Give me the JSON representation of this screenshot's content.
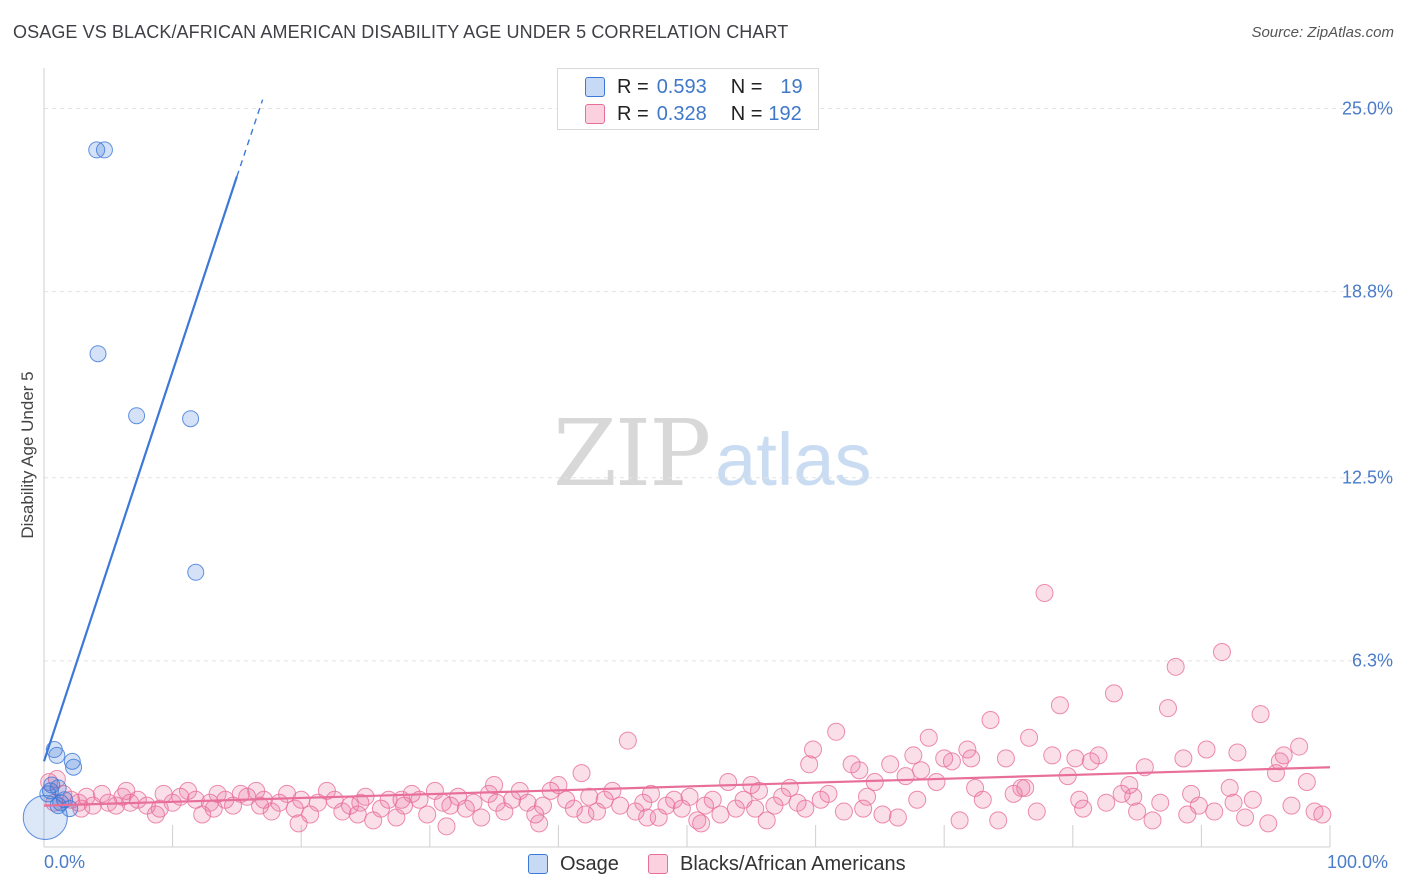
{
  "title": "OSAGE VS BLACK/AFRICAN AMERICAN DISABILITY AGE UNDER 5 CORRELATION CHART",
  "source": "Source: ZipAtlas.com",
  "watermark": {
    "zip": "ZIP",
    "atlas": "atlas"
  },
  "colors": {
    "osage": "#3c78d8",
    "black": "#e86f9a",
    "tick": "#4a7cc9"
  },
  "legend": {
    "osage": {
      "r_label": "R =",
      "r_value": "0.593",
      "n_label": "N =",
      "n_value": "19"
    },
    "black": {
      "r_label": "R =",
      "r_value": "0.328",
      "n_label": "N =",
      "n_value": "192"
    }
  },
  "bottom_legend": {
    "osage": "Osage",
    "black": "Blacks/African Americans"
  },
  "chart_data": {
    "type": "scatter",
    "title": "OSAGE VS BLACK/AFRICAN AMERICAN DISABILITY AGE UNDER 5 CORRELATION CHART",
    "xlabel": "",
    "ylabel": "Disability Age Under 5",
    "xlim": [
      0,
      100
    ],
    "ylim": [
      0,
      26.0
    ],
    "x_tick_labels": [
      "0.0%",
      "100.0%"
    ],
    "y_ticks": [
      {
        "value": 6.3,
        "label": "6.3%"
      },
      {
        "value": 12.5,
        "label": "12.5%"
      },
      {
        "value": 18.8,
        "label": "18.8%"
      },
      {
        "value": 25.0,
        "label": "25.0%"
      }
    ],
    "series": [
      {
        "name": "Osage",
        "r": 0.593,
        "n": 19,
        "trend": {
          "x0": 0.0,
          "y0": 2.9,
          "x1": 15.0,
          "y1": 22.7,
          "dash_x1": 17.0,
          "dash_y1": 25.3
        },
        "points": [
          [
            4.1,
            23.6
          ],
          [
            4.7,
            23.6
          ],
          [
            4.2,
            16.7
          ],
          [
            7.2,
            14.6
          ],
          [
            11.4,
            14.5
          ],
          [
            11.8,
            9.3
          ],
          [
            0.8,
            3.3
          ],
          [
            1.0,
            3.1
          ],
          [
            2.2,
            2.9
          ],
          [
            2.3,
            2.7
          ],
          [
            0.6,
            2.1
          ],
          [
            1.1,
            2.0
          ],
          [
            0.5,
            1.9
          ],
          [
            1.6,
            1.6
          ],
          [
            1.3,
            1.5
          ],
          [
            1.1,
            1.4
          ],
          [
            2.0,
            1.3
          ],
          [
            0.3,
            1.8
          ],
          [
            0.1,
            1.0
          ]
        ]
      },
      {
        "name": "Blacks/African Americans",
        "r": 0.328,
        "n": 192,
        "trend": {
          "x0": 0.0,
          "y0": 1.4,
          "x1": 100.0,
          "y1": 2.7
        },
        "points": [
          [
            0.4,
            2.2
          ],
          [
            1.0,
            2.3
          ],
          [
            1.5,
            1.8
          ],
          [
            2.1,
            1.6
          ],
          [
            2.7,
            1.5
          ],
          [
            3.3,
            1.7
          ],
          [
            3.8,
            1.4
          ],
          [
            4.5,
            1.8
          ],
          [
            5.0,
            1.5
          ],
          [
            5.6,
            1.4
          ],
          [
            6.1,
            1.7
          ],
          [
            6.7,
            1.5
          ],
          [
            7.3,
            1.6
          ],
          [
            8.0,
            1.4
          ],
          [
            8.7,
            1.1
          ],
          [
            9.3,
            1.8
          ],
          [
            10.0,
            1.5
          ],
          [
            10.6,
            1.7
          ],
          [
            11.2,
            1.9
          ],
          [
            11.8,
            1.6
          ],
          [
            12.3,
            1.1
          ],
          [
            12.9,
            1.5
          ],
          [
            13.5,
            1.8
          ],
          [
            14.1,
            1.6
          ],
          [
            14.7,
            1.4
          ],
          [
            15.3,
            1.8
          ],
          [
            15.8,
            1.7
          ],
          [
            16.5,
            1.9
          ],
          [
            17.1,
            1.6
          ],
          [
            17.7,
            1.2
          ],
          [
            18.3,
            1.5
          ],
          [
            18.9,
            1.8
          ],
          [
            19.5,
            1.3
          ],
          [
            20.0,
            1.6
          ],
          [
            20.7,
            1.1
          ],
          [
            21.3,
            1.5
          ],
          [
            22.0,
            1.9
          ],
          [
            22.6,
            1.6
          ],
          [
            23.2,
            1.2
          ],
          [
            23.8,
            1.4
          ],
          [
            24.4,
            1.1
          ],
          [
            25.0,
            1.7
          ],
          [
            25.6,
            0.9
          ],
          [
            26.2,
            1.3
          ],
          [
            26.8,
            1.6
          ],
          [
            27.4,
            1.0
          ],
          [
            28.0,
            1.4
          ],
          [
            28.6,
            1.8
          ],
          [
            29.2,
            1.6
          ],
          [
            29.8,
            1.1
          ],
          [
            30.4,
            1.9
          ],
          [
            31.0,
            1.5
          ],
          [
            31.6,
            1.4
          ],
          [
            32.2,
            1.7
          ],
          [
            32.8,
            1.3
          ],
          [
            33.4,
            1.5
          ],
          [
            34.0,
            1.0
          ],
          [
            34.6,
            1.8
          ],
          [
            35.2,
            1.5
          ],
          [
            35.8,
            1.2
          ],
          [
            36.4,
            1.6
          ],
          [
            37.0,
            1.9
          ],
          [
            37.6,
            1.5
          ],
          [
            38.2,
            1.1
          ],
          [
            38.8,
            1.4
          ],
          [
            39.4,
            1.9
          ],
          [
            40.0,
            2.1
          ],
          [
            40.6,
            1.6
          ],
          [
            41.2,
            1.3
          ],
          [
            41.8,
            2.5
          ],
          [
            42.4,
            1.7
          ],
          [
            43.0,
            1.2
          ],
          [
            43.6,
            1.6
          ],
          [
            44.2,
            1.9
          ],
          [
            44.8,
            1.4
          ],
          [
            45.4,
            3.6
          ],
          [
            46.0,
            1.2
          ],
          [
            46.6,
            1.5
          ],
          [
            47.2,
            1.8
          ],
          [
            47.8,
            1.0
          ],
          [
            48.4,
            1.4
          ],
          [
            49.0,
            1.6
          ],
          [
            49.6,
            1.3
          ],
          [
            50.2,
            1.7
          ],
          [
            50.8,
            0.9
          ],
          [
            51.4,
            1.4
          ],
          [
            52.0,
            1.6
          ],
          [
            52.6,
            1.1
          ],
          [
            53.2,
            2.2
          ],
          [
            53.8,
            1.3
          ],
          [
            54.4,
            1.6
          ],
          [
            55.0,
            2.1
          ],
          [
            55.6,
            1.9
          ],
          [
            56.2,
            0.9
          ],
          [
            56.8,
            1.4
          ],
          [
            57.4,
            1.7
          ],
          [
            58.0,
            2.0
          ],
          [
            58.6,
            1.5
          ],
          [
            59.2,
            1.3
          ],
          [
            59.8,
            3.3
          ],
          [
            60.4,
            1.6
          ],
          [
            61.0,
            1.8
          ],
          [
            61.6,
            3.9
          ],
          [
            62.2,
            1.2
          ],
          [
            62.8,
            2.8
          ],
          [
            63.4,
            2.6
          ],
          [
            64.0,
            1.7
          ],
          [
            64.6,
            2.2
          ],
          [
            65.2,
            1.1
          ],
          [
            65.8,
            2.8
          ],
          [
            66.4,
            1.0
          ],
          [
            67.0,
            2.4
          ],
          [
            67.6,
            3.1
          ],
          [
            68.2,
            2.6
          ],
          [
            68.8,
            3.7
          ],
          [
            69.4,
            2.2
          ],
          [
            70.0,
            3.0
          ],
          [
            70.6,
            2.9
          ],
          [
            71.2,
            0.9
          ],
          [
            71.8,
            3.3
          ],
          [
            72.4,
            2.0
          ],
          [
            73.0,
            1.6
          ],
          [
            73.6,
            4.3
          ],
          [
            74.2,
            0.9
          ],
          [
            74.8,
            3.0
          ],
          [
            75.4,
            1.8
          ],
          [
            76.0,
            2.0
          ],
          [
            76.6,
            3.7
          ],
          [
            77.2,
            1.2
          ],
          [
            77.8,
            8.6
          ],
          [
            78.4,
            3.1
          ],
          [
            79.0,
            4.8
          ],
          [
            79.6,
            2.4
          ],
          [
            80.2,
            3.0
          ],
          [
            80.8,
            1.3
          ],
          [
            81.4,
            2.9
          ],
          [
            82.0,
            3.1
          ],
          [
            82.6,
            1.5
          ],
          [
            83.2,
            5.2
          ],
          [
            83.8,
            1.8
          ],
          [
            84.4,
            2.1
          ],
          [
            85.0,
            1.2
          ],
          [
            85.6,
            2.7
          ],
          [
            86.2,
            0.9
          ],
          [
            86.8,
            1.5
          ],
          [
            87.4,
            4.7
          ],
          [
            88.0,
            6.1
          ],
          [
            88.6,
            3.0
          ],
          [
            89.2,
            1.8
          ],
          [
            89.8,
            1.4
          ],
          [
            90.4,
            3.3
          ],
          [
            91.0,
            1.2
          ],
          [
            91.6,
            6.6
          ],
          [
            92.2,
            2.0
          ],
          [
            92.8,
            3.2
          ],
          [
            93.4,
            1.0
          ],
          [
            94.0,
            1.6
          ],
          [
            94.6,
            4.5
          ],
          [
            95.2,
            0.8
          ],
          [
            95.8,
            2.5
          ],
          [
            96.4,
            3.1
          ],
          [
            97.0,
            1.4
          ],
          [
            97.6,
            3.4
          ],
          [
            98.2,
            2.2
          ],
          [
            98.8,
            1.2
          ],
          [
            99.4,
            1.1
          ],
          [
            0.8,
            1.5
          ],
          [
            2.9,
            1.3
          ],
          [
            6.4,
            1.9
          ],
          [
            9.0,
            1.3
          ],
          [
            13.2,
            1.3
          ],
          [
            16.8,
            1.4
          ],
          [
            19.8,
            0.8
          ],
          [
            24.6,
            1.5
          ],
          [
            27.8,
            1.6
          ],
          [
            31.3,
            0.7
          ],
          [
            35.0,
            2.1
          ],
          [
            38.5,
            0.8
          ],
          [
            42.1,
            1.1
          ],
          [
            46.9,
            1.0
          ],
          [
            51.1,
            0.8
          ],
          [
            55.3,
            1.3
          ],
          [
            59.5,
            2.8
          ],
          [
            63.7,
            1.3
          ],
          [
            67.9,
            1.6
          ],
          [
            72.1,
            3.0
          ],
          [
            76.3,
            2.0
          ],
          [
            80.5,
            1.6
          ],
          [
            84.7,
            1.7
          ],
          [
            88.9,
            1.1
          ],
          [
            92.5,
            1.5
          ],
          [
            96.1,
            2.9
          ]
        ]
      }
    ]
  }
}
